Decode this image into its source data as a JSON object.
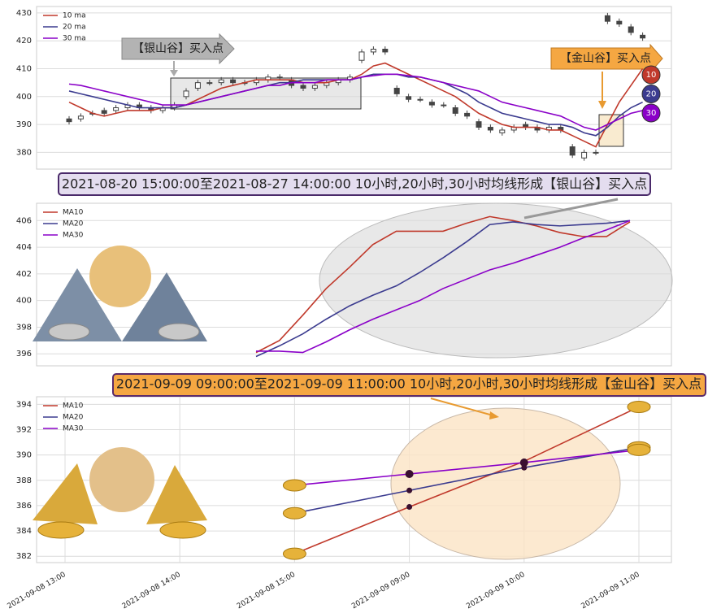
{
  "chart_data": [
    {
      "type": "candlestick",
      "open": [
        392,
        392,
        394,
        395,
        395,
        396,
        397,
        396,
        395,
        396,
        400,
        403,
        405,
        405,
        406,
        405,
        405,
        406,
        407,
        406,
        404,
        403,
        404,
        405,
        406,
        413,
        416,
        417,
        403,
        400,
        399,
        398,
        397,
        396,
        394,
        391,
        389,
        387,
        388,
        390,
        389,
        388,
        389,
        382,
        378,
        380,
        429,
        427,
        425,
        422
      ],
      "high": [
        393,
        394,
        395,
        396,
        397,
        398,
        398,
        397,
        397,
        398,
        403,
        406,
        406,
        407,
        407,
        406,
        407,
        408,
        408,
        407,
        405,
        405,
        406,
        407,
        408,
        417,
        418,
        418,
        404,
        401,
        400,
        399,
        398,
        397,
        395,
        392,
        390,
        389,
        390,
        391,
        390,
        390,
        390,
        383,
        381,
        381,
        430,
        428,
        426,
        423
      ],
      "low": [
        390,
        391,
        393,
        393,
        394,
        395,
        395,
        394,
        394,
        395,
        399,
        402,
        404,
        404,
        404,
        404,
        404,
        405,
        406,
        403,
        402,
        402,
        403,
        404,
        405,
        412,
        415,
        415,
        400,
        398,
        398,
        396,
        396,
        393,
        392,
        388,
        387,
        386,
        387,
        388,
        387,
        387,
        387,
        378,
        377,
        379,
        426,
        425,
        422,
        420
      ],
      "close": [
        391,
        393,
        394,
        394,
        396,
        397,
        396,
        395,
        396,
        397,
        402,
        405,
        405,
        406,
        405,
        405,
        406,
        407,
        407,
        404,
        403,
        404,
        405,
        406,
        407,
        416,
        417,
        416,
        401,
        399,
        399,
        397,
        397,
        394,
        393,
        389,
        388,
        388,
        389,
        389,
        388,
        389,
        388,
        379,
        380,
        380,
        427,
        426,
        423,
        421
      ],
      "series": [
        {
          "name": "10 ma",
          "label": "10",
          "color": "#c0392b",
          "values": [
            398,
            396,
            394,
            393,
            394,
            395,
            395,
            395,
            396,
            396,
            397,
            399,
            401,
            403,
            404,
            405,
            406,
            406,
            406,
            406,
            405,
            405,
            405,
            406,
            406,
            408,
            411,
            412,
            410,
            408,
            406,
            404,
            402,
            400,
            397,
            394,
            392,
            390,
            389,
            389,
            389,
            388,
            388,
            386,
            384,
            382,
            390,
            398,
            404,
            410
          ]
        },
        {
          "name": "20 ma",
          "label": "20",
          "color": "#3b3b8f",
          "values": [
            402,
            401,
            400,
            399,
            398,
            397,
            396,
            396,
            396,
            396,
            397,
            398,
            399,
            400,
            401,
            402,
            403,
            404,
            405,
            405,
            406,
            406,
            406,
            406,
            406,
            407,
            408,
            408,
            408,
            407,
            407,
            406,
            405,
            403,
            401,
            398,
            396,
            394,
            393,
            392,
            391,
            390,
            390,
            389,
            387,
            386,
            389,
            393,
            396,
            398
          ]
        },
        {
          "name": "30 ma",
          "label": "30",
          "color": "#8a00c8",
          "values": [
            404.5,
            404,
            403,
            402,
            401,
            400,
            399,
            398,
            397,
            397,
            397,
            398,
            399,
            400,
            401,
            402,
            403,
            404,
            404,
            405,
            405,
            405,
            406,
            406,
            406,
            407,
            407.5,
            408,
            408,
            407.5,
            407,
            406,
            405,
            404,
            403,
            402,
            400,
            398,
            397,
            396,
            395,
            394,
            393,
            391,
            389,
            388,
            390,
            392,
            394,
            395
          ]
        }
      ],
      "annotations": [
        "【银山谷】买入点",
        "【金山谷】买入点"
      ],
      "ylim": [
        374,
        432.3
      ],
      "yticks": [
        380,
        390,
        400,
        410,
        420,
        430
      ],
      "grid": true,
      "legend": "upper left"
    },
    {
      "type": "line",
      "title": "2021-08-20 15:00:00至2021-08-27 14:00:00 10小时,20小时,30小时均线形成【银山谷】买入点",
      "series": [
        {
          "name": "MA10",
          "color": "#c0392b",
          "values": [
            396.1,
            397.0,
            398.9,
            400.9,
            402.5,
            404.2,
            405.2,
            405.2,
            405.2,
            405.8,
            406.3,
            406.0,
            405.6,
            405.1,
            404.8,
            404.8,
            405.9
          ]
        },
        {
          "name": "MA20",
          "color": "#3b3b8f",
          "values": [
            395.8,
            396.6,
            397.5,
            398.6,
            399.6,
            400.4,
            401.1,
            402.1,
            403.2,
            404.4,
            405.7,
            405.9,
            405.7,
            405.6,
            405.7,
            405.8,
            406.0
          ]
        },
        {
          "name": "MA30",
          "color": "#8a00c8",
          "values": [
            396.2,
            396.2,
            396.1,
            396.9,
            397.8,
            398.6,
            399.3,
            400.0,
            400.9,
            401.6,
            402.3,
            402.8,
            403.4,
            404.0,
            404.7,
            405.3,
            406.0
          ]
        }
      ],
      "ylim": [
        395.1,
        407.3
      ],
      "yticks": [
        396,
        398,
        400,
        402,
        404,
        406
      ],
      "grid": true,
      "legend": "upper left"
    },
    {
      "type": "line",
      "title": "2021-09-09 09:00:00至2021-09-09 11:00:00 10小时,20小时,30小时均线形成【金山谷】买入点",
      "categories": [
        "2021-09-08 13:00",
        "2021-09-08 14:00",
        "2021-09-08 15:00",
        "2021-09-09 09:00",
        "2021-09-09 10:00",
        "2021-09-09 11:00"
      ],
      "series": [
        {
          "name": "MA10",
          "color": "#c0392b",
          "values": [
            null,
            null,
            382.2,
            385.9,
            389.5,
            393.8
          ]
        },
        {
          "name": "MA20",
          "color": "#3b3b8f",
          "values": [
            null,
            null,
            385.4,
            387.2,
            389.0,
            390.6
          ]
        },
        {
          "name": "MA30",
          "color": "#8a00c8",
          "values": [
            null,
            null,
            387.6,
            388.5,
            389.4,
            390.4
          ]
        }
      ],
      "ylim": [
        381.5,
        394.6
      ],
      "yticks": [
        382,
        384,
        386,
        388,
        390,
        392,
        394
      ],
      "grid": true,
      "legend": "upper left"
    }
  ]
}
